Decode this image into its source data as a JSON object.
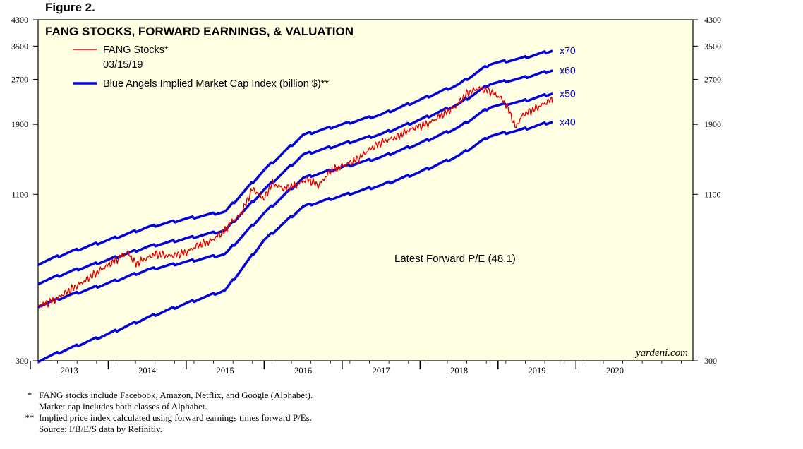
{
  "figure_label": "Figure 2.",
  "chart_data": {
    "type": "line",
    "title": "FANG STOCKS, FORWARD EARNINGS, & VALUATION",
    "y_scale": "log",
    "ylim": [
      300,
      4300
    ],
    "y_ticks": [
      300,
      1100,
      1900,
      2700,
      3500,
      4300
    ],
    "xlim": [
      2012.6,
      2021.0
    ],
    "x_tick_labels": [
      "2013",
      "2014",
      "2015",
      "2016",
      "2017",
      "2018",
      "2019",
      "2020"
    ],
    "legend": [
      {
        "label": "FANG Stocks*",
        "sublabel": "03/15/19",
        "color": "#e00000"
      },
      {
        "label": "Blue Angels Implied Market Cap Index (billion $)**",
        "color": "#0000e0"
      }
    ],
    "annotation": "Latest Forward P/E (48.1)",
    "watermark": "yardeni.com",
    "fang_series": {
      "name": "FANG Stocks",
      "color": "#e00000",
      "x": [
        2012.6,
        2012.8,
        2013.0,
        2013.2,
        2013.4,
        2013.6,
        2013.75,
        2013.85,
        2013.95,
        2014.1,
        2014.3,
        2014.5,
        2014.65,
        2014.8,
        2015.0,
        2015.05,
        2015.2,
        2015.35,
        2015.5,
        2015.6,
        2015.75,
        2015.9,
        2016.05,
        2016.2,
        2016.35,
        2016.55,
        2016.7,
        2016.85,
        2017.0,
        2017.2,
        2017.4,
        2017.6,
        2017.8,
        2017.95,
        2018.1,
        2018.25,
        2018.4,
        2018.55,
        2018.65,
        2018.72,
        2018.82,
        2018.95,
        2019.05,
        2019.2
      ],
      "values": [
        460,
        480,
        520,
        560,
        610,
        660,
        700,
        640,
        660,
        690,
        680,
        700,
        740,
        760,
        830,
        870,
        940,
        1150,
        1060,
        1200,
        1150,
        1180,
        1240,
        1180,
        1320,
        1390,
        1450,
        1560,
        1650,
        1720,
        1840,
        1910,
        2060,
        2180,
        2420,
        2520,
        2460,
        2320,
        2100,
        1850,
        2050,
        2130,
        2200,
        2320
      ]
    },
    "series": [
      {
        "name": "x70",
        "color": "#0000e0",
        "x": [
          2012.6,
          2013.0,
          2013.5,
          2014.0,
          2014.5,
          2015.0,
          2015.5,
          2016.0,
          2016.5,
          2017.0,
          2017.5,
          2018.0,
          2018.4,
          2018.8,
          2019.2
        ],
        "values": [
          640,
          700,
          770,
          850,
          910,
          960,
          1330,
          1750,
          1900,
          2050,
          2300,
          2600,
          3050,
          3180,
          3380
        ]
      },
      {
        "name": "x60",
        "color": "#0000e0",
        "x": [
          2012.6,
          2013.0,
          2013.5,
          2014.0,
          2014.5,
          2015.0,
          2015.5,
          2016.0,
          2016.5,
          2017.0,
          2017.5,
          2018.0,
          2018.4,
          2018.8,
          2019.2
        ],
        "values": [
          550,
          600,
          660,
          730,
          780,
          830,
          1140,
          1500,
          1630,
          1760,
          1970,
          2230,
          2610,
          2720,
          2900
        ]
      },
      {
        "name": "x50",
        "color": "#0000e0",
        "x": [
          2012.6,
          2013.0,
          2013.5,
          2014.0,
          2014.5,
          2015.0,
          2015.5,
          2016.0,
          2016.5,
          2017.0,
          2017.5,
          2018.0,
          2018.4,
          2018.8,
          2019.2
        ],
        "values": [
          460,
          500,
          550,
          610,
          650,
          690,
          950,
          1250,
          1360,
          1470,
          1640,
          1860,
          2180,
          2270,
          2420
        ]
      },
      {
        "name": "x40",
        "color": "#0000e0",
        "x": [
          2012.6,
          2013.0,
          2013.5,
          2014.0,
          2014.5,
          2015.0,
          2015.5,
          2016.0,
          2016.5,
          2017.0,
          2017.5,
          2018.0,
          2018.4,
          2018.8,
          2019.2
        ],
        "values": [
          300,
          330,
          370,
          420,
          470,
          520,
          770,
          1000,
          1090,
          1180,
          1310,
          1490,
          1740,
          1820,
          1940
        ]
      }
    ]
  },
  "footnotes": [
    {
      "mark": "*",
      "text": "FANG stocks include Facebook, Amazon, Netflix, and Google (Alphabet)."
    },
    {
      "mark": "",
      "text": "Market cap includes both classes of Alphabet."
    },
    {
      "mark": "**",
      "text": "Implied price index calculated using forward earnings times forward P/Es."
    },
    {
      "mark": "",
      "text": "Source: I/B/E/S data by Refinitiv."
    }
  ]
}
